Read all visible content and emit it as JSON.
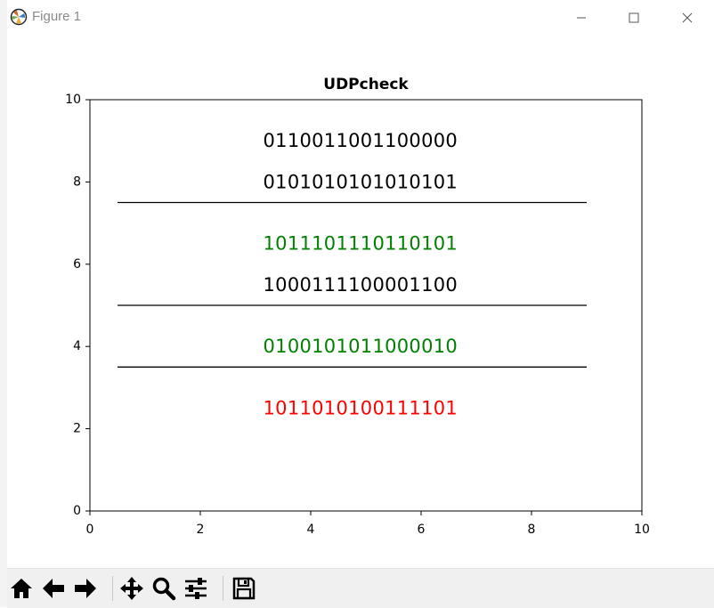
{
  "window": {
    "title": "Figure 1",
    "controls": [
      "minimize-icon",
      "maximize-icon",
      "close-icon"
    ]
  },
  "toolbar": {
    "buttons": [
      "home-icon",
      "back-arrow-icon",
      "forward-arrow-icon",
      "pan-icon",
      "zoom-icon",
      "configure-subplots-icon",
      "save-icon"
    ]
  },
  "chart_data": {
    "type": "text",
    "title": "UDPcheck",
    "xlabel": "",
    "ylabel": "",
    "xlim": [
      0,
      10
    ],
    "ylim": [
      0,
      10
    ],
    "xticks": [
      0,
      2,
      4,
      6,
      8,
      10
    ],
    "yticks": [
      0,
      2,
      4,
      6,
      8,
      10
    ],
    "xtick_labels": [
      "0",
      "2",
      "4",
      "6",
      "8",
      "10"
    ],
    "ytick_labels": [
      "0",
      "2",
      "4",
      "6",
      "8",
      "10"
    ],
    "grid": false,
    "texts": [
      {
        "x": 4.9,
        "y": 9.0,
        "text": "0110011001100000",
        "color": "#000000"
      },
      {
        "x": 4.9,
        "y": 8.0,
        "text": "0101010101010101",
        "color": "#000000"
      },
      {
        "x": 4.9,
        "y": 6.5,
        "text": "1011101110110101",
        "color": "#008000"
      },
      {
        "x": 4.9,
        "y": 5.5,
        "text": "1000111100001100",
        "color": "#000000"
      },
      {
        "x": 4.9,
        "y": 4.0,
        "text": "0100101011000010",
        "color": "#008000"
      },
      {
        "x": 4.9,
        "y": 2.5,
        "text": "1011010100111101",
        "color": "#ff0000"
      }
    ],
    "hlines": [
      {
        "y": 7.5,
        "xmin": 0.5,
        "xmax": 9.0
      },
      {
        "y": 5.0,
        "xmin": 0.5,
        "xmax": 9.0
      },
      {
        "y": 3.5,
        "xmin": 0.5,
        "xmax": 9.0
      }
    ]
  }
}
